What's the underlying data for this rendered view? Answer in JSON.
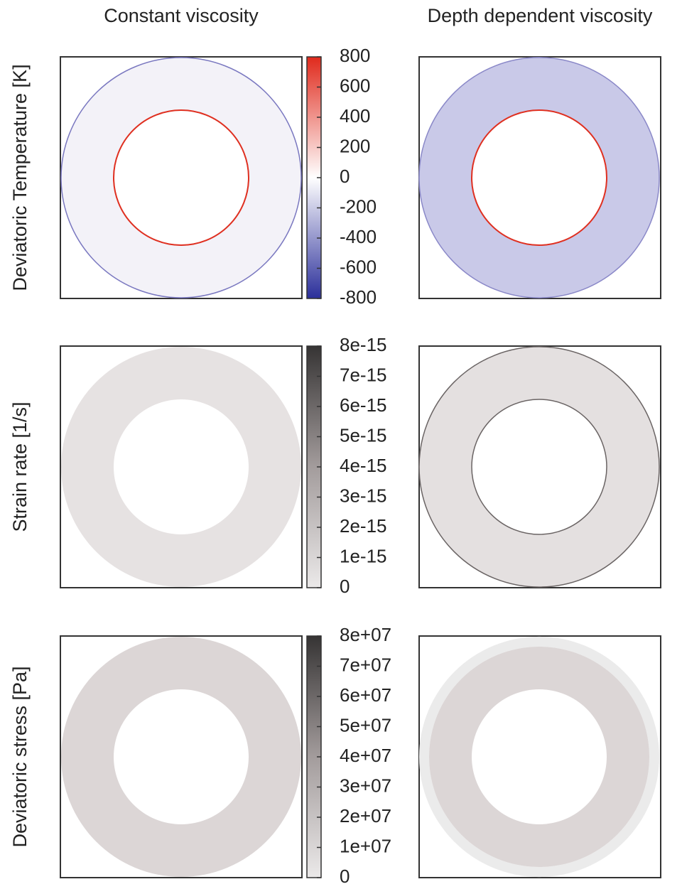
{
  "columns": [
    "Constant viscosity",
    "Depth dependent viscosity"
  ],
  "rows": [
    {
      "label": "Deviatoric Temperature [K]",
      "colorbar": {
        "colors": [
          "#2b2f9a",
          "#ffffff",
          "#e02a1c"
        ],
        "lim": [
          -800,
          800
        ],
        "ticks": [
          800,
          600,
          400,
          200,
          0,
          -200,
          -400,
          -600,
          -800
        ]
      }
    },
    {
      "label": "Strain rate [1/s]",
      "colorbar": {
        "colors": [
          "#ebe9e9",
          "#a39c9c",
          "#363434"
        ],
        "lim": [
          0,
          8e-15
        ],
        "ticks": [
          {
            "value": 8e-15,
            "label": "8e-15"
          },
          {
            "value": 7e-15,
            "label": "7e-15"
          },
          {
            "value": 6e-15,
            "label": "6e-15"
          },
          {
            "value": 5e-15,
            "label": "5e-15"
          },
          {
            "value": 4e-15,
            "label": "4e-15"
          },
          {
            "value": 3e-15,
            "label": "3e-15"
          },
          {
            "value": 2e-15,
            "label": "2e-15"
          },
          {
            "value": 1e-15,
            "label": "1e-15"
          },
          0
        ]
      }
    },
    {
      "label": "Deviatoric stress [Pa]",
      "colorbar": {
        "colors": [
          "#ebe9e9",
          "#a39c9c",
          "#363434"
        ],
        "lim": [
          0,
          80000000
        ],
        "ticks": [
          {
            "value": 80000000,
            "label": "8e+07"
          },
          {
            "value": 70000000,
            "label": "7e+07"
          },
          {
            "value": 60000000,
            "label": "6e+07"
          },
          {
            "value": 50000000,
            "label": "5e+07"
          },
          {
            "value": 40000000,
            "label": "4e+07"
          },
          {
            "value": 30000000,
            "label": "3e+07"
          },
          {
            "value": 20000000,
            "label": "2e+07"
          },
          {
            "value": 10000000,
            "label": "1e+07"
          },
          0
        ]
      }
    }
  ]
}
